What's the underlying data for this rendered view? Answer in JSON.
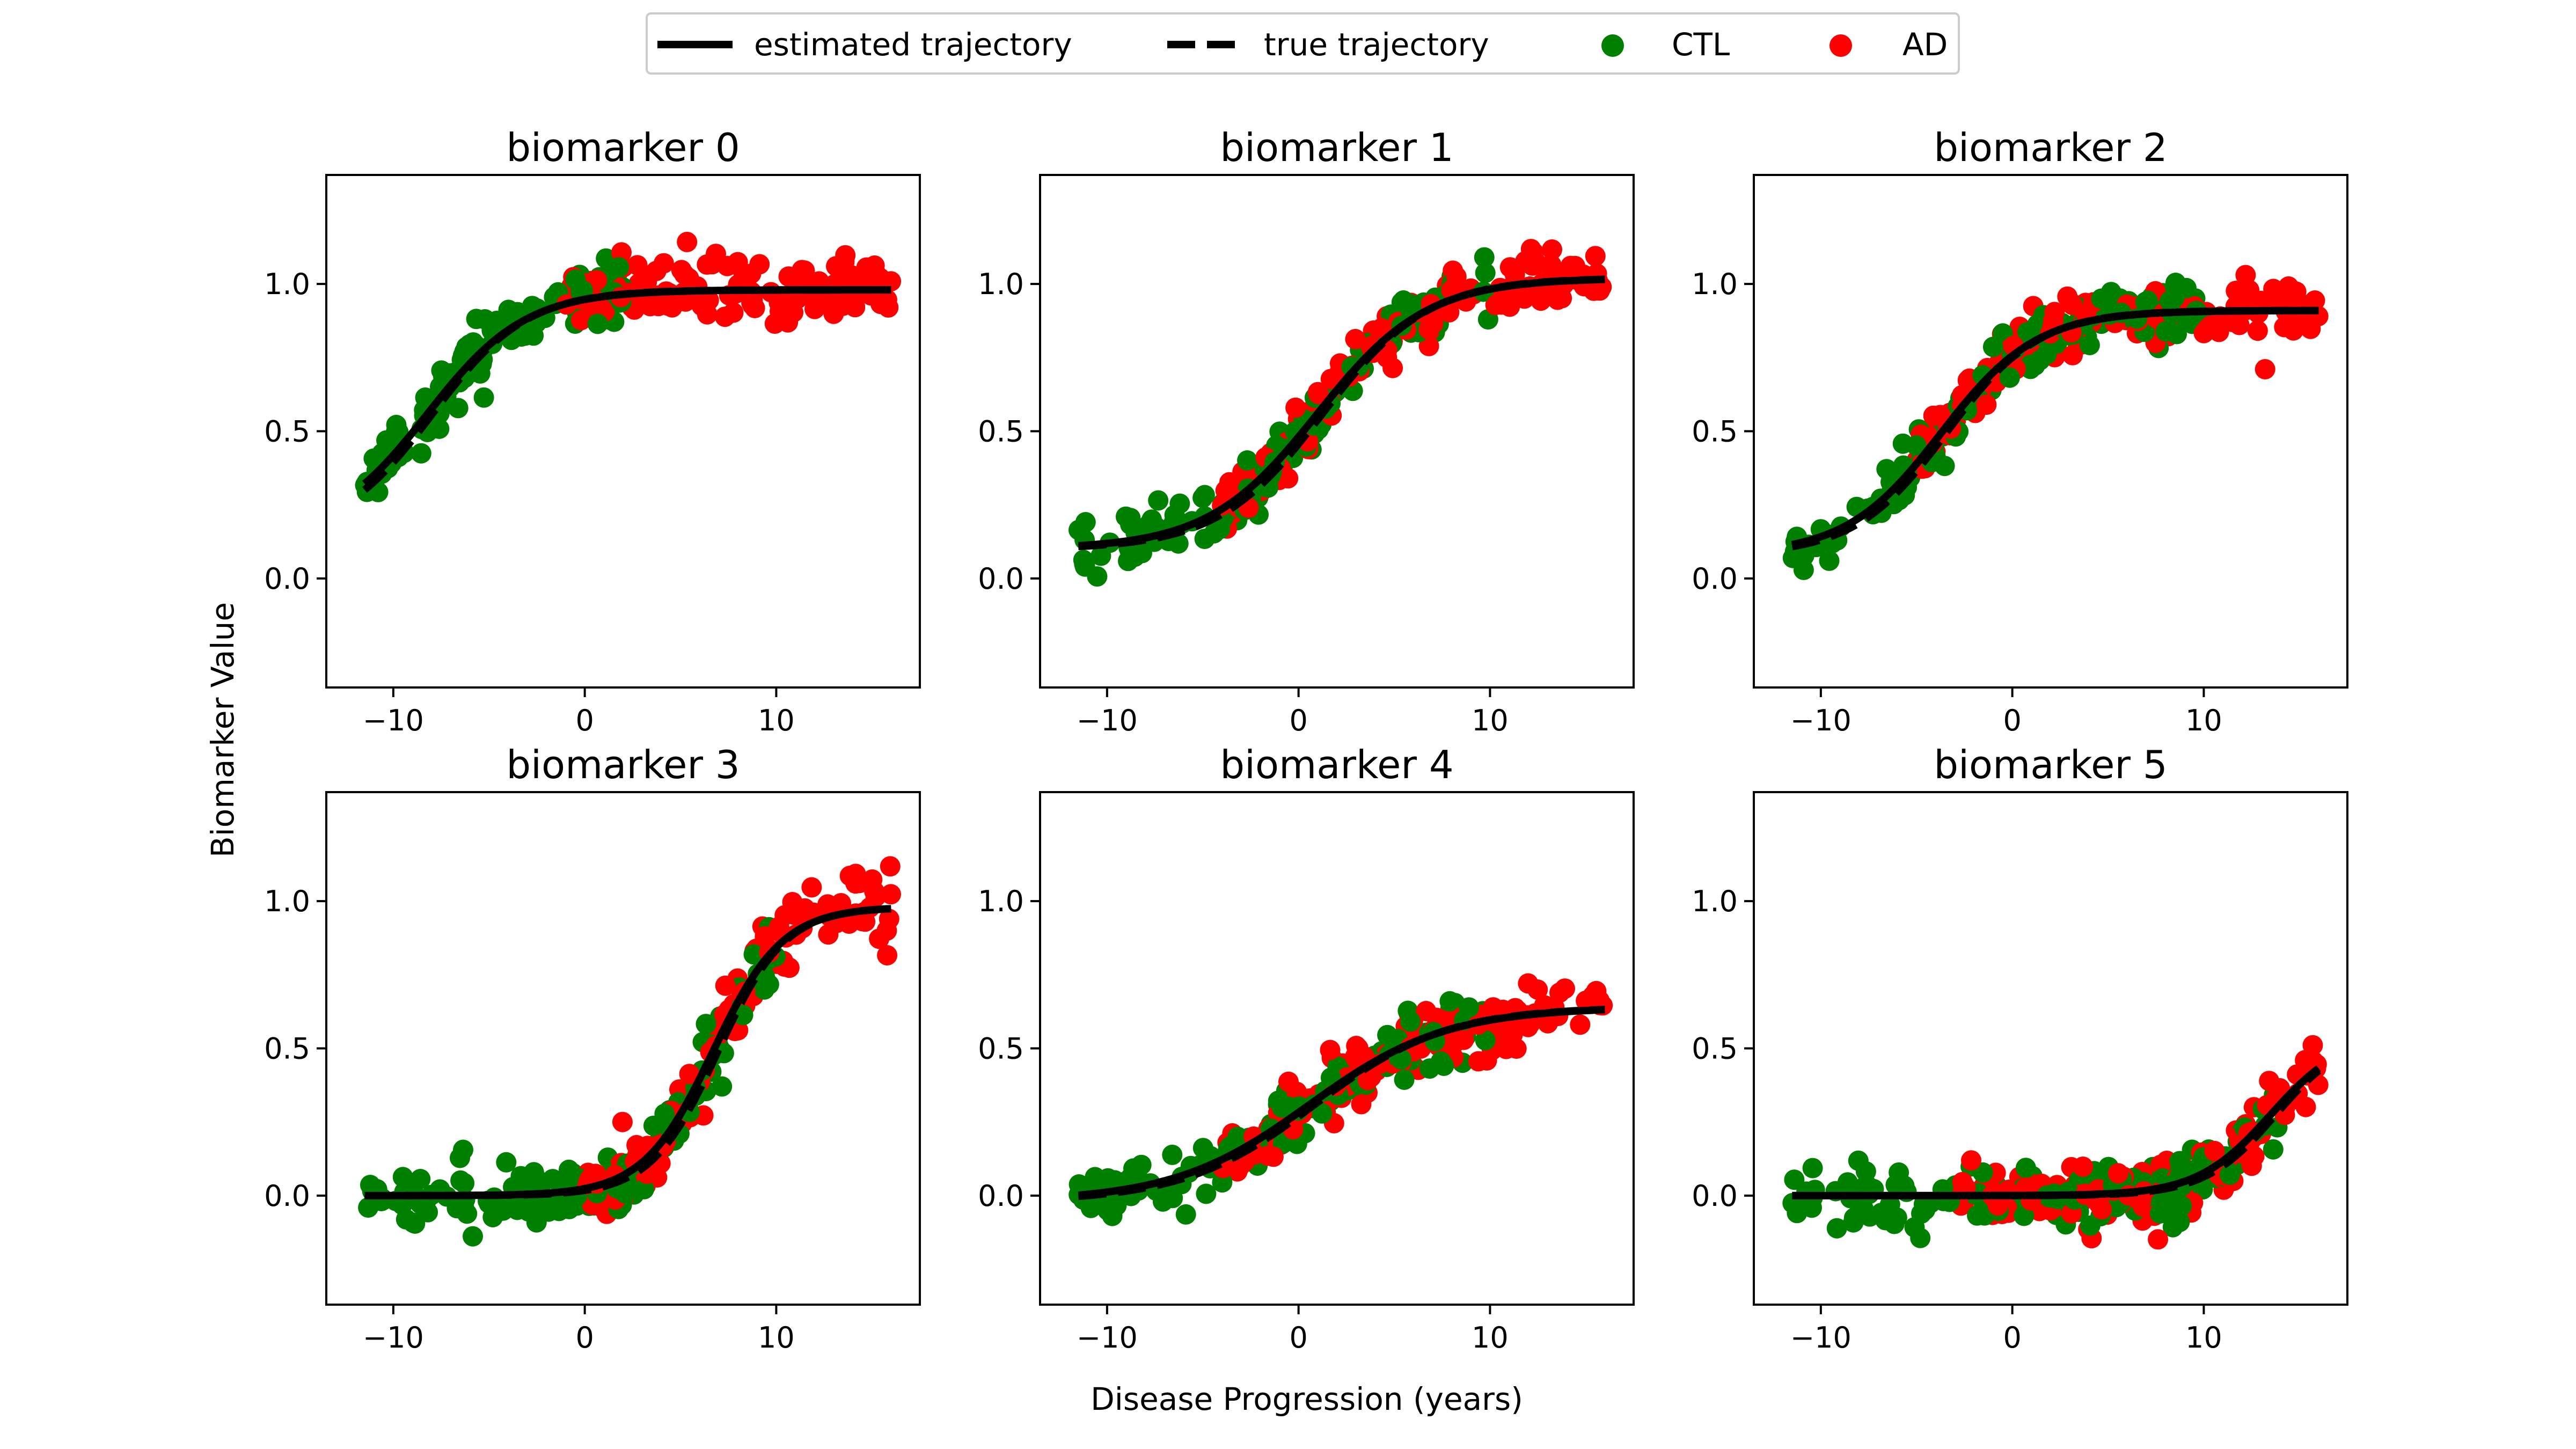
{
  "chart_data": {
    "type": "scatter",
    "xlabel": "Disease Progression (years)",
    "ylabel": "Biomarker Value",
    "xlim": [
      -13.5,
      17.5
    ],
    "ylim": [
      -0.37,
      1.37
    ],
    "xticks": [
      -10,
      0,
      10
    ],
    "yticks": [
      0.0,
      0.5,
      1.0
    ],
    "xtick_labels": [
      "−10",
      "0",
      "10"
    ],
    "ytick_labels": [
      "0.0",
      "0.5",
      "1.0"
    ],
    "grid": false,
    "legend": {
      "placement": "top-center",
      "entries": [
        {
          "label": "estimated trajectory",
          "style": "solid-line",
          "color": "#000000"
        },
        {
          "label": "true trajectory",
          "style": "dashed-line",
          "color": "#000000"
        },
        {
          "label": "CTL",
          "style": "marker",
          "color": "#008000"
        },
        {
          "label": "AD",
          "style": "marker",
          "color": "#ff0000"
        }
      ]
    },
    "colors": {
      "CTL": "#008000",
      "AD": "#ff0000",
      "trajectory": "#000000"
    },
    "panels": [
      {
        "title": "biomarker 0",
        "x_range": [
          -11.5,
          16
        ],
        "ctl_until": 2,
        "ad_from": -1,
        "curve": {
          "min": 0.14,
          "max": 0.98,
          "mid": -8.2,
          "slope": 0.39
        },
        "noise": 0.05
      },
      {
        "title": "biomarker 1",
        "x_range": [
          -11.5,
          16
        ],
        "ctl_until": 10,
        "ad_from": -4,
        "curve": {
          "min": 0.1,
          "max": 1.02,
          "mid": 1.0,
          "slope": 0.35
        },
        "noise": 0.05
      },
      {
        "title": "biomarker 2",
        "x_range": [
          -11.5,
          16
        ],
        "ctl_until": 10,
        "ad_from": -5,
        "curve": {
          "min": 0.08,
          "max": 0.91,
          "mid": -3.7,
          "slope": 0.4
        },
        "noise": 0.05
      },
      {
        "title": "biomarker 3",
        "x_range": [
          -11.5,
          16
        ],
        "ctl_until": 10,
        "ad_from": 0,
        "curve": {
          "min": 0.0,
          "max": 0.98,
          "mid": 6.7,
          "slope": 0.55
        },
        "noise": 0.055
      },
      {
        "title": "biomarker 4",
        "x_range": [
          -11.5,
          16
        ],
        "ctl_until": 10,
        "ad_from": -4,
        "curve": {
          "min": -0.02,
          "max": 0.64,
          "mid": 0.6,
          "slope": 0.28
        },
        "noise": 0.05
      },
      {
        "title": "biomarker 5",
        "x_range": [
          -11.5,
          16
        ],
        "ctl_until": 14,
        "ad_from": -3,
        "curve": {
          "min": 0.0,
          "max": 0.55,
          "mid": 13.5,
          "slope": 0.52
        },
        "noise": 0.05
      }
    ]
  }
}
